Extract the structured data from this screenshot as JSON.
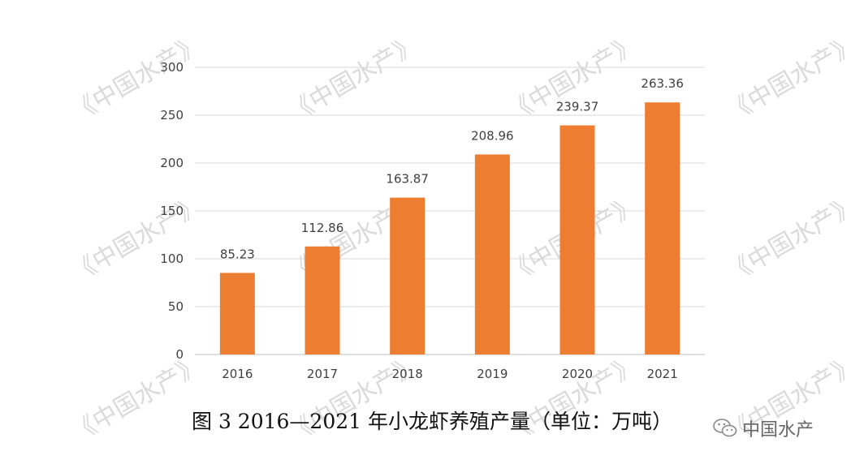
{
  "chart_data": {
    "type": "bar",
    "categories": [
      "2016",
      "2017",
      "2018",
      "2019",
      "2020",
      "2021"
    ],
    "values": [
      85.23,
      112.86,
      163.87,
      208.96,
      239.37,
      263.36
    ],
    "value_labels": [
      "85.23",
      "112.86",
      "163.87",
      "208.96",
      "239.37",
      "263.36"
    ],
    "yticks": [
      "0",
      "50",
      "100",
      "150",
      "200",
      "250",
      "300"
    ],
    "ylim": [
      0,
      300
    ],
    "grid": true,
    "bar_color": "#ED7D31",
    "caption": "图 3 2016—2021 年小龙虾养殖产量（单位：万吨）"
  },
  "watermark": "《中国水产》",
  "logo": {
    "text": "中国水产",
    "icon": "wechat-icon"
  }
}
